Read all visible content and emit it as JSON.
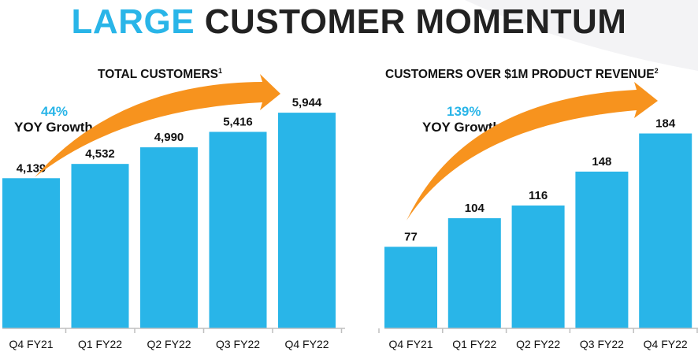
{
  "title": {
    "part1": "LARGE",
    "part2": "CUSTOMER MOMENTUM"
  },
  "colors": {
    "accent": "#29b5e8",
    "arrow": "#f7931e",
    "text": "#111111",
    "axis": "#bfbfbf"
  },
  "chart_data": [
    {
      "type": "bar",
      "title": "TOTAL CUSTOMERS",
      "footnote": "1",
      "growth": {
        "value": "44%",
        "label": "YOY Growth"
      },
      "categories": [
        "Q4 FY21",
        "Q1 FY22",
        "Q2 FY22",
        "Q3 FY22",
        "Q4 FY22"
      ],
      "values": [
        4139,
        4532,
        4990,
        5416,
        5944
      ],
      "value_labels": [
        "4,139",
        "4,532",
        "4,990",
        "5,416",
        "5,944"
      ],
      "ylim": [
        0,
        9050
      ],
      "grid": false
    },
    {
      "type": "bar",
      "title": "CUSTOMERS OVER $1M PRODUCT REVENUE",
      "footnote": "2",
      "growth": {
        "value": "139%",
        "label": "YOY Growth"
      },
      "categories": [
        "Q4 FY21",
        "Q1 FY22",
        "Q2 FY22",
        "Q3 FY22",
        "Q4 FY22"
      ],
      "values": [
        77,
        104,
        116,
        148,
        184
      ],
      "value_labels": [
        "77",
        "104",
        "116",
        "148",
        "184"
      ],
      "ylim": [
        0,
        310
      ],
      "grid": false
    }
  ]
}
